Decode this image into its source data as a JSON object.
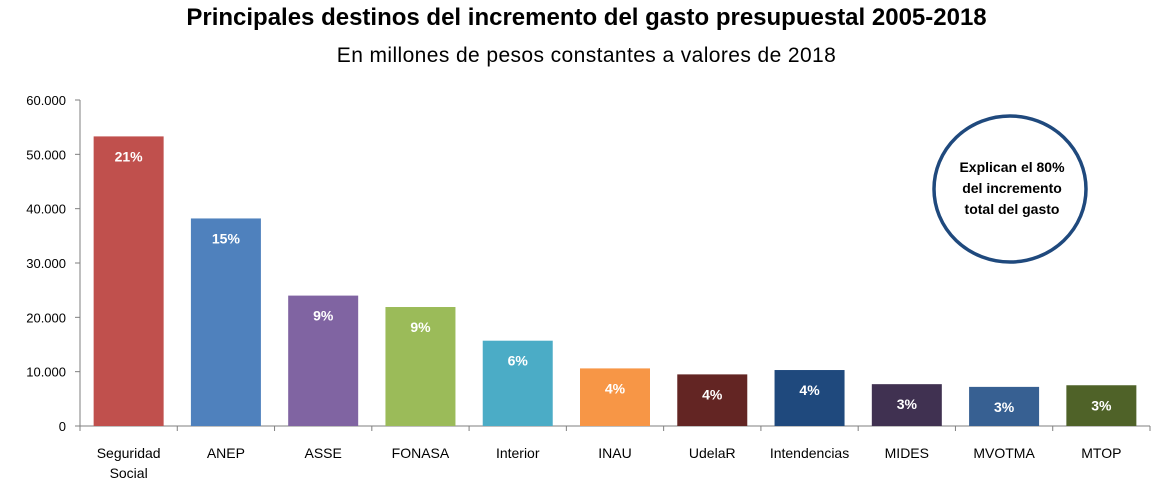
{
  "title": "Principales destinos del incremento del gasto presupuestal 2005-2018",
  "subtitle": "En millones de pesos constantes a valores de 2018",
  "chart_data": {
    "type": "bar",
    "title": "Principales destinos del incremento del gasto presupuestal 2005-2018",
    "subtitle": "En millones de pesos constantes a valores de 2018",
    "xlabel": "",
    "ylabel": "",
    "ylim": [
      0,
      60000
    ],
    "yticks": [
      0,
      10000,
      20000,
      30000,
      40000,
      50000,
      60000
    ],
    "ytick_labels": [
      "0",
      "10.000",
      "20.000",
      "30.000",
      "40.000",
      "50.000",
      "60.000"
    ],
    "grid": false,
    "categories": [
      [
        "Seguridad",
        "Social"
      ],
      [
        "ANEP"
      ],
      [
        "ASSE"
      ],
      [
        "FONASA"
      ],
      [
        "Interior"
      ],
      [
        "INAU"
      ],
      [
        "UdelaR"
      ],
      [
        "Intendencias"
      ],
      [
        "MIDES"
      ],
      [
        "MVOTMA"
      ],
      [
        "MTOP"
      ]
    ],
    "values": [
      53300,
      38200,
      24000,
      21900,
      15700,
      10600,
      9500,
      10300,
      7700,
      7200,
      7500
    ],
    "data_labels": [
      "21%",
      "15%",
      "9%",
      "9%",
      "6%",
      "4%",
      "4%",
      "4%",
      "3%",
      "3%",
      "3%"
    ],
    "colors": [
      "#C0504D",
      "#4F81BD",
      "#8064A2",
      "#9BBB59",
      "#4BACC6",
      "#F79646",
      "#632523",
      "#1F497D",
      "#403151",
      "#376092",
      "#4F6228"
    ],
    "annotation": {
      "lines": [
        "Explican el 80%",
        "del incremento",
        "total del gasto"
      ],
      "border_color": "#1F497D"
    }
  }
}
